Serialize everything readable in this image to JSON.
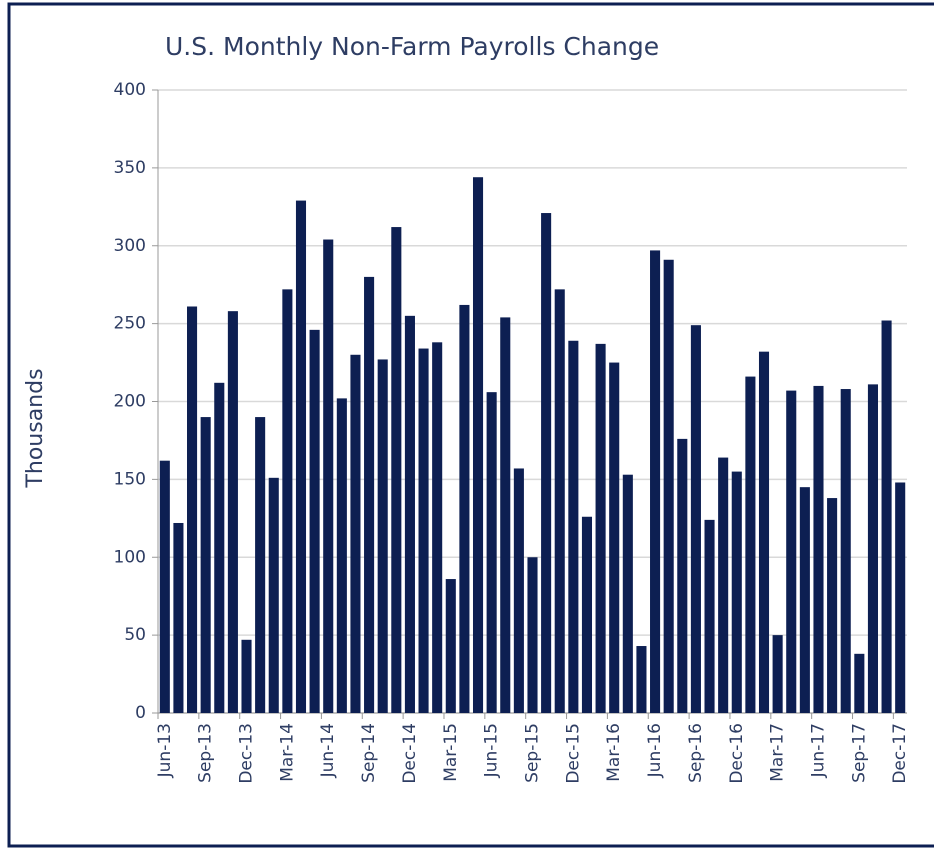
{
  "chart_data": {
    "type": "bar",
    "title": "U.S. Monthly Non-Farm Payrolls Change",
    "y_label": "Thousands",
    "categories": [
      "Jun-13",
      null,
      null,
      "Sep-13",
      null,
      null,
      "Dec-13",
      null,
      null,
      "Mar-14",
      null,
      null,
      "Jun-14",
      null,
      null,
      "Sep-14",
      null,
      null,
      "Dec-14",
      null,
      null,
      "Mar-15",
      null,
      null,
      "Jun-15",
      null,
      null,
      "Sep-15",
      null,
      null,
      "Dec-15",
      null,
      null,
      "Mar-16",
      null,
      null,
      "Jun-16",
      null,
      null,
      "Sep-16",
      null,
      null,
      "Dec-16",
      null,
      null,
      "Mar-17",
      null,
      null,
      "Jun-17",
      null,
      null,
      "Sep-17",
      null,
      null,
      "Dec-17"
    ],
    "values": [
      162,
      122,
      261,
      190,
      212,
      258,
      47,
      190,
      151,
      272,
      329,
      246,
      304,
      202,
      230,
      280,
      227,
      312,
      255,
      234,
      238,
      86,
      262,
      344,
      206,
      254,
      157,
      100,
      321,
      272,
      239,
      126,
      237,
      225,
      153,
      43,
      297,
      291,
      176,
      249,
      124,
      164,
      155,
      216,
      232,
      50,
      207,
      145,
      210,
      138,
      208,
      38,
      211,
      252,
      148
    ],
    "color": "#0d1f52",
    "ylim": [
      0,
      400
    ],
    "yticks": [
      0,
      50,
      100,
      150,
      200,
      250,
      300,
      350,
      400
    ],
    "grid": true
  }
}
